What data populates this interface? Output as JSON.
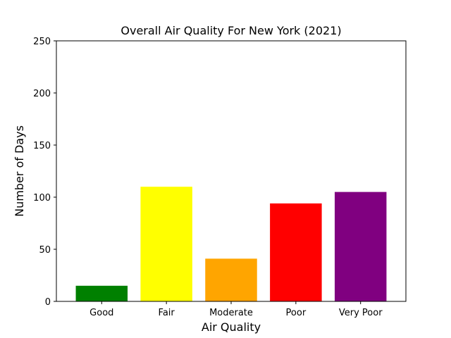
{
  "chart_data": {
    "type": "bar",
    "title": "Overall Air Quality For New York (2021)",
    "xlabel": "Air Quality",
    "ylabel": "Number of Days",
    "categories": [
      "Good",
      "Fair",
      "Moderate",
      "Poor",
      "Very Poor"
    ],
    "values": [
      15,
      110,
      41,
      94,
      105
    ],
    "colors": [
      "#008000",
      "#ffff00",
      "#ffa500",
      "#ff0000",
      "#800080"
    ],
    "ylim": [
      0,
      250
    ],
    "yticks": [
      0,
      50,
      100,
      150,
      200,
      250
    ],
    "grid": false,
    "legend": "none"
  }
}
